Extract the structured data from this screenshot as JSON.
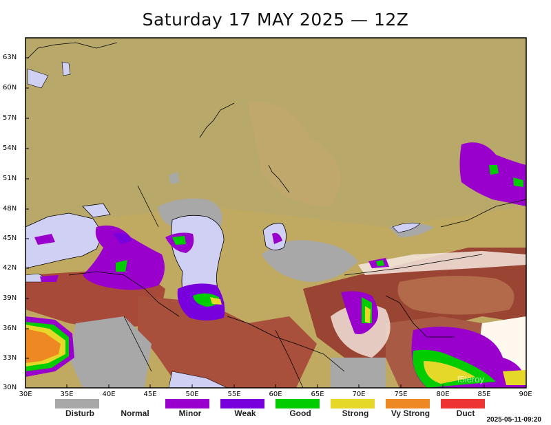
{
  "title": "Saturday 17 MAY 2025 — 12Z",
  "lat_labels": [
    "63N",
    "60N",
    "57N",
    "54N",
    "51N",
    "48N",
    "45N",
    "42N",
    "39N",
    "36N",
    "33N",
    "30N"
  ],
  "lon_labels": [
    "30E",
    "35E",
    "40E",
    "45E",
    "50E",
    "55E",
    "60E",
    "65E",
    "70E",
    "75E",
    "80E",
    "85E",
    "90E"
  ],
  "legend": [
    {
      "label": "Disturb",
      "color": "#a8a8a8"
    },
    {
      "label": "Normal",
      "color": "#ffffff"
    },
    {
      "label": "Minor",
      "color": "#9900cc"
    },
    {
      "label": "Weak",
      "color": "#7700dd"
    },
    {
      "label": "Good",
      "color": "#00cc00"
    },
    {
      "label": "Strong",
      "color": "#e6d829"
    },
    {
      "label": "Vy Strong",
      "color": "#ee8822"
    },
    {
      "label": "Duct",
      "color": "#ee3333"
    }
  ],
  "colors": {
    "land_base": "#b8a86a",
    "lowland": "#c6b46a",
    "highland": "#a8483a",
    "snow": "#fff8ee",
    "water": "#d0d0f4",
    "disturb": "#a8a8a8"
  },
  "watermark": "f5leroy",
  "timestamp": "2025-05-11-09:20"
}
